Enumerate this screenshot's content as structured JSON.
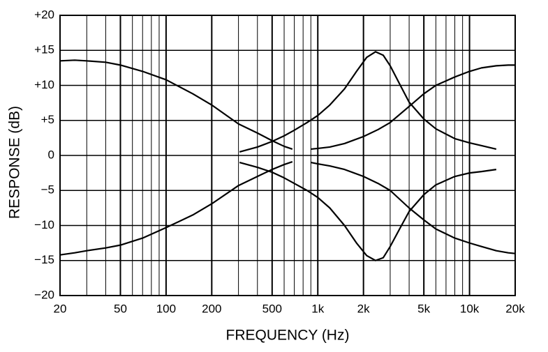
{
  "chart_data": {
    "type": "line",
    "xlabel": "FREQUENCY (Hz)",
    "ylabel": "RESPONSE (dB)",
    "xscale": "log",
    "grid": true,
    "xlim": [
      20,
      20000
    ],
    "ylim": [
      -20,
      20
    ],
    "xticks": [
      20,
      50,
      100,
      200,
      500,
      {
        "value": 1000,
        "label": "1k"
      },
      {
        "value": 2000,
        "label": "2k"
      },
      {
        "value": 5000,
        "label": "5k"
      },
      {
        "value": 10000,
        "label": "10k"
      },
      {
        "value": 20000,
        "label": "20k"
      }
    ],
    "xminor": [
      30,
      40,
      60,
      70,
      80,
      90,
      300,
      400,
      600,
      700,
      800,
      900,
      3000,
      4000,
      6000,
      7000,
      8000,
      9000
    ],
    "yticks": [
      {
        "value": -20,
        "label": "−20"
      },
      {
        "value": -15,
        "label": "−15"
      },
      {
        "value": -10,
        "label": "−10"
      },
      {
        "value": -5,
        "label": "−5"
      },
      0,
      {
        "value": 5,
        "label": "+5"
      },
      {
        "value": 10,
        "label": "+10"
      },
      {
        "value": 15,
        "label": "+15"
      },
      {
        "value": 20,
        "label": "+20"
      }
    ],
    "series": [
      {
        "color": "#000000",
        "x": [
          20,
          25,
          30,
          40,
          50,
          70,
          100,
          150,
          200,
          300,
          400,
          500,
          600,
          680
        ],
        "values": [
          13.5,
          13.6,
          13.5,
          13.3,
          12.9,
          12,
          10.8,
          8.8,
          7.2,
          4.5,
          3.2,
          2.1,
          1.3,
          0.9
        ]
      },
      {
        "color": "#000000",
        "x": [
          20,
          25,
          30,
          40,
          50,
          70,
          100,
          150,
          200,
          300,
          400,
          500,
          600,
          680
        ],
        "values": [
          -14.2,
          -13.9,
          -13.6,
          -13.2,
          -12.8,
          -11.8,
          -10.3,
          -8.5,
          -6.9,
          -4.3,
          -3.0,
          -2.0,
          -1.3,
          -0.9
        ]
      },
      {
        "color": "#000000",
        "x": [
          305,
          400,
          500,
          600,
          700,
          850,
          1000,
          1200,
          1500,
          1800,
          2100,
          2400,
          2700,
          3000,
          3500,
          4000,
          5000,
          6000,
          8000,
          10000,
          12000,
          15000
        ],
        "values": [
          0.5,
          1.2,
          2.0,
          2.8,
          3.6,
          4.7,
          5.7,
          7.2,
          9.5,
          12,
          14,
          14.8,
          14.3,
          12.8,
          10,
          7.6,
          5.2,
          3.8,
          2.4,
          1.8,
          1.4,
          0.9
        ]
      },
      {
        "color": "#000000",
        "x": [
          305,
          400,
          500,
          600,
          700,
          850,
          1000,
          1200,
          1500,
          1800,
          2100,
          2400,
          2700,
          3000,
          3500,
          4000,
          5000,
          6000,
          8000,
          10000,
          12000,
          15000
        ],
        "values": [
          -1,
          -1.7,
          -2.4,
          -3.2,
          -4.0,
          -5.0,
          -6.0,
          -7.5,
          -10,
          -12.5,
          -14.3,
          -15,
          -14.6,
          -13,
          -10.3,
          -8,
          -5.6,
          -4.2,
          -3,
          -2.5,
          -2.3,
          -2.0
        ]
      },
      {
        "color": "#000000",
        "x": [
          900,
          1000,
          1200,
          1500,
          2000,
          2500,
          3000,
          4000,
          5000,
          6000,
          8000,
          10000,
          12000,
          15000,
          18000,
          20000
        ],
        "values": [
          0.9,
          1.0,
          1.2,
          1.7,
          2.7,
          3.7,
          4.7,
          7.0,
          8.8,
          10,
          11.2,
          12,
          12.5,
          12.8,
          12.9,
          12.9
        ]
      },
      {
        "color": "#000000",
        "x": [
          900,
          1000,
          1200,
          1500,
          2000,
          2500,
          3000,
          4000,
          5000,
          6000,
          8000,
          10000,
          12000,
          15000,
          18000,
          20000
        ],
        "values": [
          -1.0,
          -1.2,
          -1.5,
          -2.0,
          -3.0,
          -4.0,
          -5.0,
          -7.5,
          -9.2,
          -10.5,
          -11.8,
          -12.5,
          -13.0,
          -13.6,
          -13.9,
          -14.0
        ]
      }
    ]
  }
}
